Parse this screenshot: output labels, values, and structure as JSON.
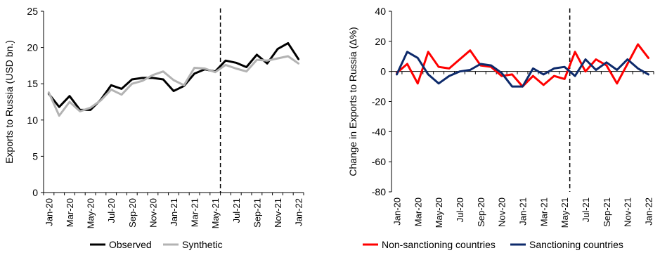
{
  "chart_data": [
    {
      "type": "line",
      "title": "",
      "xlabel": "",
      "ylabel": "Exports to Russia (USD bn.)",
      "ylim": [
        0,
        25
      ],
      "yticks": [
        0,
        5,
        10,
        15,
        20,
        25
      ],
      "x": [
        "Jan-20",
        "Feb-20",
        "Mar-20",
        "Apr-20",
        "May-20",
        "Jun-20",
        "Jul-20",
        "Aug-20",
        "Sep-20",
        "Oct-20",
        "Nov-20",
        "Dec-20",
        "Jan-21",
        "Feb-21",
        "Mar-21",
        "Apr-21",
        "May-21",
        "Jun-21",
        "Jul-21",
        "Aug-21",
        "Sep-21",
        "Oct-21",
        "Nov-21",
        "Dec-21",
        "Jan-22"
      ],
      "xtick_labels": [
        "Jan-20",
        "Mar-20",
        "May-20",
        "Jul-20",
        "Sep-20",
        "Nov-20",
        "Jan-21",
        "Mar-21",
        "May-21",
        "Jul-21",
        "Sep-21",
        "Nov-21",
        "Jan-22"
      ],
      "vline_at": "Jun-21",
      "grid": false,
      "legend_position": "bottom",
      "series": [
        {
          "name": "Observed",
          "color": "#000000",
          "values": [
            13.6,
            11.8,
            13.3,
            11.4,
            11.4,
            12.8,
            14.8,
            14.3,
            15.6,
            15.8,
            15.8,
            15.6,
            14.0,
            14.7,
            16.4,
            17.0,
            16.7,
            18.2,
            17.9,
            17.3,
            19.0,
            17.8,
            19.8,
            20.6,
            18.4
          ]
        },
        {
          "name": "Synthetic",
          "color": "#b3b3b3",
          "values": [
            13.8,
            10.6,
            12.5,
            11.2,
            11.7,
            12.7,
            14.2,
            13.5,
            15.0,
            15.4,
            16.2,
            16.7,
            15.5,
            14.8,
            17.2,
            17.1,
            16.6,
            17.6,
            17.1,
            16.7,
            18.3,
            18.2,
            18.5,
            18.8,
            17.8
          ]
        }
      ]
    },
    {
      "type": "line",
      "title": "",
      "xlabel": "",
      "ylabel": "Change in Exports to Russia (Δ%)",
      "ylim": [
        -80,
        40
      ],
      "yticks": [
        -80,
        -60,
        -40,
        -20,
        0,
        20,
        40
      ],
      "x": [
        "Jan-20",
        "Feb-20",
        "Mar-20",
        "Apr-20",
        "May-20",
        "Jun-20",
        "Jul-20",
        "Aug-20",
        "Sep-20",
        "Oct-20",
        "Nov-20",
        "Dec-20",
        "Jan-21",
        "Feb-21",
        "Mar-21",
        "Apr-21",
        "May-21",
        "Jun-21",
        "Jul-21",
        "Aug-21",
        "Sep-21",
        "Oct-21",
        "Nov-21",
        "Dec-21",
        "Jan-22"
      ],
      "xtick_labels": [
        "Jan-20",
        "Mar-20",
        "May-20",
        "Jul-20",
        "Sep-20",
        "Nov-20",
        "Jan-21",
        "Mar-21",
        "May-21",
        "Jul-21",
        "Sep-21",
        "Nov-21",
        "Jan-22"
      ],
      "vline_at": "Jun-21",
      "grid": false,
      "legend_position": "bottom",
      "series": [
        {
          "name": "Non-sanctioning countries",
          "color": "#ff0000",
          "values": [
            -1,
            5,
            -8,
            13,
            3,
            2,
            8,
            14,
            4,
            3,
            -3,
            -2,
            -10,
            -3,
            -9,
            -3,
            -5,
            13,
            0,
            8,
            4,
            -8,
            5,
            18,
            9
          ]
        },
        {
          "name": "Sanctioning countries",
          "color": "#0d2a6b",
          "values": [
            -2,
            13,
            9,
            -2,
            -8,
            -3,
            0,
            1,
            5,
            4,
            -1,
            -10,
            -10,
            2,
            -2,
            2,
            3,
            -3,
            8,
            1,
            6,
            1,
            8,
            2,
            -2
          ]
        }
      ]
    }
  ]
}
